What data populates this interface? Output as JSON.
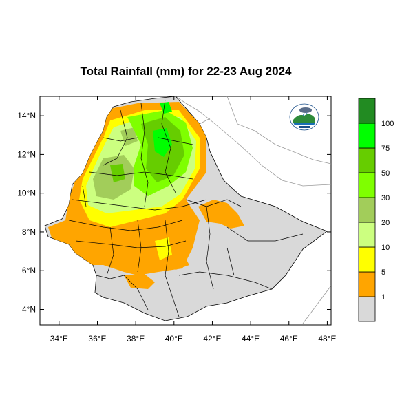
{
  "title": "Total Rainfall (mm) for 22-23 Aug 2024",
  "map": {
    "region": "Ethiopia",
    "lon_range": [
      33,
      48.2
    ],
    "lat_range": [
      3.2,
      15
    ],
    "x_ticks": [
      {
        "value": 34,
        "label": "34°E"
      },
      {
        "value": 36,
        "label": "36°E"
      },
      {
        "value": 38,
        "label": "38°E"
      },
      {
        "value": 40,
        "label": "40°E"
      },
      {
        "value": 42,
        "label": "42°E"
      },
      {
        "value": 44,
        "label": "44°E"
      },
      {
        "value": 46,
        "label": "46°E"
      },
      {
        "value": 48,
        "label": "48°E"
      }
    ],
    "y_ticks": [
      {
        "value": 14,
        "label": "14°N"
      },
      {
        "value": 12,
        "label": "12°N"
      },
      {
        "value": 10,
        "label": "10°N"
      },
      {
        "value": 8,
        "label": "8°N"
      },
      {
        "value": 6,
        "label": "6°N"
      },
      {
        "value": 4,
        "label": "4°N"
      }
    ]
  },
  "legend": {
    "units": "mm",
    "bins": [
      {
        "label": "",
        "color": "#d9d9d9"
      },
      {
        "label": "1",
        "color": "#ffa500"
      },
      {
        "label": "5",
        "color": "#ffff00"
      },
      {
        "label": "10",
        "color": "#ccff80"
      },
      {
        "label": "20",
        "color": "#a2cd5a"
      },
      {
        "label": "30",
        "color": "#7fff00"
      },
      {
        "label": "50",
        "color": "#66cd00"
      },
      {
        "label": "75",
        "color": "#00ff00"
      },
      {
        "label": "100",
        "color": "#228b22"
      }
    ]
  },
  "logo": {
    "icon": "ethiopian-meteorology-institute-logo"
  }
}
